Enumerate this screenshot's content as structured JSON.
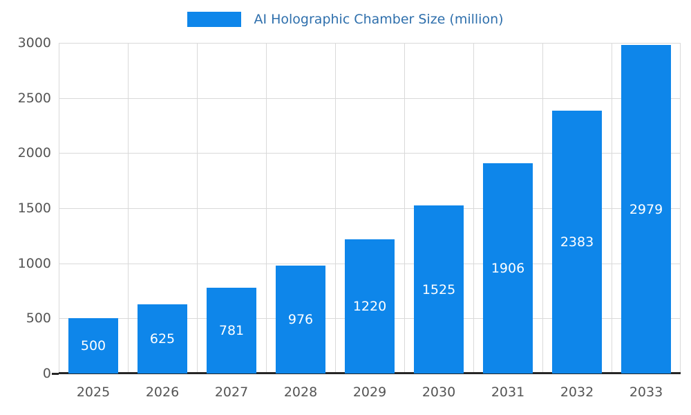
{
  "legend": {
    "swatch_color": "#0e86ea",
    "label": "AI Holographic Chamber Size (million)"
  },
  "chart_data": {
    "type": "bar",
    "title": "AI Holographic Chamber Size (million)",
    "categories": [
      "2025",
      "2026",
      "2027",
      "2028",
      "2029",
      "2030",
      "2031",
      "2032",
      "2033"
    ],
    "values": [
      500,
      625,
      781,
      976,
      1220,
      1525,
      1906,
      2383,
      2979
    ],
    "xlabel": "",
    "ylabel": "",
    "ylim": [
      0,
      3000
    ],
    "yticks": [
      0,
      500,
      1000,
      1500,
      2000,
      2500,
      3000
    ],
    "grid": true,
    "legend_position": "top-center",
    "colors": {
      "bar": "#0e86ea",
      "value_label": "#ffffff",
      "title_text": "#2e6fac",
      "tick_label": "#545454",
      "gridline": "#d9d9d9",
      "axis_line": "#262626",
      "background": "#ffffff"
    }
  }
}
